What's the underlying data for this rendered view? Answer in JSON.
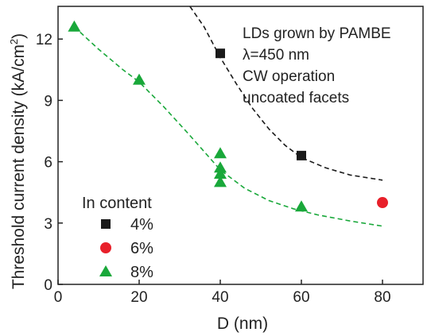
{
  "chart_data": {
    "type": "scatter",
    "xlabel": "D (nm)",
    "ylabel": "Threshold current density (kA/cm",
    "ylabel_sup": "2",
    "ylabel_close": ")",
    "xlim": [
      0,
      90
    ],
    "ylim": [
      0,
      13.6
    ],
    "xticks": [
      0,
      20,
      40,
      60,
      80
    ],
    "yticks": [
      0,
      3,
      6,
      9,
      12
    ],
    "annotations": [
      "LDs grown by PAMBE",
      "λ=450 nm",
      "CW operation",
      "uncoated facets"
    ],
    "legend_title": "In content",
    "legend_position": "bottom-left",
    "series": [
      {
        "name": "4%",
        "marker": "square",
        "color": "#1a1a1a",
        "points": [
          [
            40,
            11.3
          ],
          [
            60,
            6.3
          ]
        ]
      },
      {
        "name": "6%",
        "marker": "circle",
        "color": "#e8202a",
        "points": [
          [
            80,
            4.0
          ]
        ]
      },
      {
        "name": "8%",
        "marker": "triangle",
        "color": "#19a83a",
        "points": [
          [
            4,
            12.6
          ],
          [
            20,
            10.0
          ],
          [
            40,
            6.4
          ],
          [
            40,
            5.7
          ],
          [
            40,
            5.4
          ],
          [
            40,
            5.0
          ],
          [
            60,
            3.8
          ]
        ]
      }
    ],
    "fits": [
      {
        "color": "#1a1a1a",
        "style": "dashed",
        "points": [
          [
            32.5,
            13.6
          ],
          [
            36,
            12.6
          ],
          [
            40,
            11.1
          ],
          [
            44,
            9.8
          ],
          [
            48,
            8.6
          ],
          [
            52,
            7.6
          ],
          [
            56,
            6.8
          ],
          [
            60,
            6.2
          ],
          [
            66,
            5.7
          ],
          [
            72,
            5.35
          ],
          [
            80,
            5.1
          ]
        ]
      },
      {
        "color": "#19a83a",
        "style": "dashed",
        "points": [
          [
            4,
            12.6
          ],
          [
            10,
            11.5
          ],
          [
            16,
            10.5
          ],
          [
            20,
            9.9
          ],
          [
            26,
            8.7
          ],
          [
            32,
            7.4
          ],
          [
            36,
            6.5
          ],
          [
            40,
            5.6
          ],
          [
            46,
            4.7
          ],
          [
            52,
            4.1
          ],
          [
            58,
            3.7
          ],
          [
            64,
            3.4
          ],
          [
            72,
            3.1
          ],
          [
            80,
            2.85
          ]
        ]
      }
    ]
  }
}
